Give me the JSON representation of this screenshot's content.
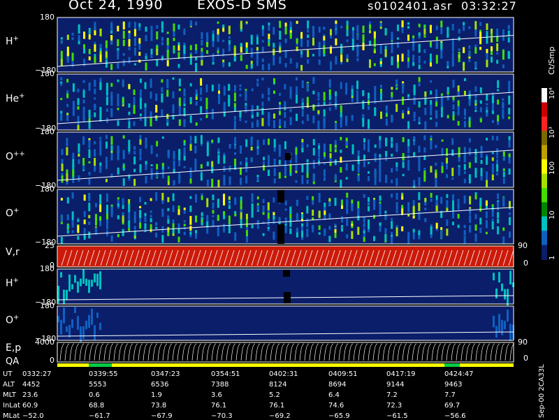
{
  "header": {
    "date": "Oct 24, 1990",
    "instrument": "EXOS-D SMS",
    "file": "s0102401.asr",
    "time": "03:32:27"
  },
  "panels": [
    {
      "name": "H+",
      "label": "H",
      "sup": "+",
      "ymax": "180",
      "ymin": "−180"
    },
    {
      "name": "He+",
      "label": "He",
      "sup": "+",
      "ymax": "180",
      "ymin": "−180"
    },
    {
      "name": "O++",
      "label": "O",
      "sup": "++",
      "ymax": "180",
      "ymin": "−180"
    },
    {
      "name": "O+",
      "label": "O",
      "sup": "+",
      "ymax": "180",
      "ymin": "−180"
    },
    {
      "name": "V,r",
      "label": "V,r",
      "sup": "",
      "ymax": "25",
      "ymin": "0",
      "right_ymax": "90",
      "right_ymin": "0"
    },
    {
      "name": "H+ (2)",
      "label": "H",
      "sup": "+",
      "ymax": "180",
      "ymin": "−180"
    },
    {
      "name": "O+ (2)",
      "label": "O",
      "sup": "+",
      "ymax": "180",
      "ymin": "−180"
    },
    {
      "name": "E,p",
      "label": "E,p",
      "sup": "",
      "ymax": "4000",
      "ymin": "0",
      "right_ymax": "90",
      "right_ymin": "0"
    }
  ],
  "qa_label": "QA",
  "colorbar": {
    "unit": "Ct/Smp",
    "ticks": [
      "10⁴",
      "10³",
      "100",
      "10",
      "1"
    ],
    "colors": [
      "#ffffff",
      "#cc0000",
      "#ff2222",
      "#7a6a00",
      "#c0a000",
      "#ffff00",
      "#a8e000",
      "#44dd00",
      "#008800",
      "#00c0c0",
      "#1060c0",
      "#0a1e6a"
    ]
  },
  "footer_id": "Sep-00 2CA33L",
  "table": {
    "row_labels": [
      "UT",
      "ALT",
      "MLT",
      "InLat",
      "MLat"
    ],
    "columns": [
      [
        "0332:27",
        "4452",
        "23.6",
        "60.9",
        "−52.0"
      ],
      [
        "0339:55",
        "5553",
        "0.6",
        "68.8",
        "−61.7"
      ],
      [
        "0347:23",
        "6536",
        "1.9",
        "73.8",
        "−67.9"
      ],
      [
        "0354:51",
        "7388",
        "3.6",
        "76.1",
        "−70.3"
      ],
      [
        "0402:31",
        "8124",
        "5.2",
        "76.1",
        "−69.2"
      ],
      [
        "0409:51",
        "8694",
        "6.4",
        "74.6",
        "−65.9"
      ],
      [
        "0417:19",
        "9144",
        "7.2",
        "72.3",
        "−61.5"
      ],
      [
        "0424:47",
        "9463",
        "7.7",
        "69.7",
        "−56.6"
      ]
    ]
  },
  "chart_data": {
    "type": "heatmap",
    "title": "Oct 24, 1990   EXOS-D SMS",
    "x": [
      "0332:27",
      "0339:55",
      "0347:23",
      "0354:51",
      "0402:31",
      "0409:51",
      "0417:19",
      "0424:47"
    ],
    "series": [
      {
        "name": "H+",
        "ylim": [
          -180,
          180
        ]
      },
      {
        "name": "He+",
        "ylim": [
          -180,
          180
        ]
      },
      {
        "name": "O++",
        "ylim": [
          -180,
          180
        ]
      },
      {
        "name": "O+",
        "ylim": [
          -180,
          180
        ]
      },
      {
        "name": "V,r",
        "ylim": [
          0,
          25
        ]
      },
      {
        "name": "H+",
        "ylim": [
          -180,
          180
        ]
      },
      {
        "name": "O+",
        "ylim": [
          -180,
          180
        ]
      },
      {
        "name": "E,p",
        "ylim": [
          0,
          4000
        ]
      }
    ],
    "colorscale": {
      "unit": "Ct/Smp",
      "scale": "log",
      "range": [
        1,
        10000
      ]
    }
  }
}
